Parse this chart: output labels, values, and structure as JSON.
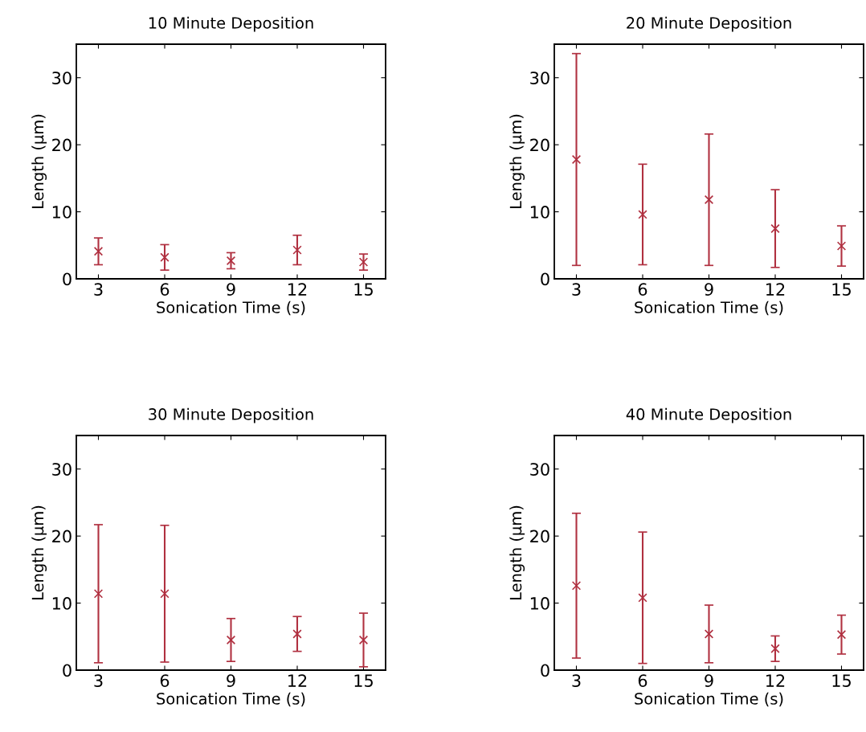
{
  "chart_data": [
    {
      "type": "scatter",
      "title": "10 Minute Deposition",
      "xlabel": "Sonication Time (s)",
      "ylabel": "Length (μm)",
      "x": [
        3,
        6,
        9,
        12,
        15
      ],
      "xlim": [
        2,
        16
      ],
      "ylim": [
        0,
        35
      ],
      "xticks": [
        3,
        6,
        9,
        12,
        15
      ],
      "yticks": [
        0,
        10,
        20,
        30
      ],
      "marker": "cross",
      "grid": false,
      "legend": false,
      "series": [
        {
          "color": "#b03040",
          "values": [
            4.1,
            3.2,
            2.7,
            4.3,
            2.5
          ],
          "errors": [
            2.0,
            1.9,
            1.2,
            2.2,
            1.2
          ]
        }
      ]
    },
    {
      "type": "scatter",
      "title": "20 Minute Deposition",
      "xlabel": "Sonication Time (s)",
      "ylabel": "Length (μm)",
      "x": [
        3,
        6,
        9,
        12,
        15
      ],
      "xlim": [
        2,
        16
      ],
      "ylim": [
        0,
        35
      ],
      "xticks": [
        3,
        6,
        9,
        12,
        15
      ],
      "yticks": [
        0,
        10,
        20,
        30
      ],
      "marker": "cross",
      "grid": false,
      "legend": false,
      "series": [
        {
          "color": "#b03040",
          "values": [
            17.8,
            9.6,
            11.8,
            7.5,
            4.9
          ],
          "errors": [
            15.8,
            7.5,
            9.8,
            5.8,
            3.0
          ]
        }
      ]
    },
    {
      "type": "scatter",
      "title": "30 Minute Deposition",
      "xlabel": "Sonication Time (s)",
      "ylabel": "Length (μm)",
      "x": [
        3,
        6,
        9,
        12,
        15
      ],
      "xlim": [
        2,
        16
      ],
      "ylim": [
        0,
        35
      ],
      "xticks": [
        3,
        6,
        9,
        12,
        15
      ],
      "yticks": [
        0,
        10,
        20,
        30
      ],
      "marker": "cross",
      "grid": false,
      "legend": false,
      "series": [
        {
          "color": "#b03040",
          "values": [
            11.4,
            11.4,
            4.5,
            5.4,
            4.5
          ],
          "errors": [
            10.3,
            10.2,
            3.2,
            2.6,
            4.0
          ]
        }
      ]
    },
    {
      "type": "scatter",
      "title": "40 Minute Deposition",
      "xlabel": "Sonication Time (s)",
      "ylabel": "Length (μm)",
      "x": [
        3,
        6,
        9,
        12,
        15
      ],
      "xlim": [
        2,
        16
      ],
      "ylim": [
        0,
        35
      ],
      "xticks": [
        3,
        6,
        9,
        12,
        15
      ],
      "yticks": [
        0,
        10,
        20,
        30
      ],
      "marker": "cross",
      "grid": false,
      "legend": false,
      "series": [
        {
          "color": "#b03040",
          "values": [
            12.6,
            10.8,
            5.4,
            3.2,
            5.3
          ],
          "errors": [
            10.8,
            9.8,
            4.3,
            1.9,
            2.9
          ]
        }
      ]
    }
  ]
}
